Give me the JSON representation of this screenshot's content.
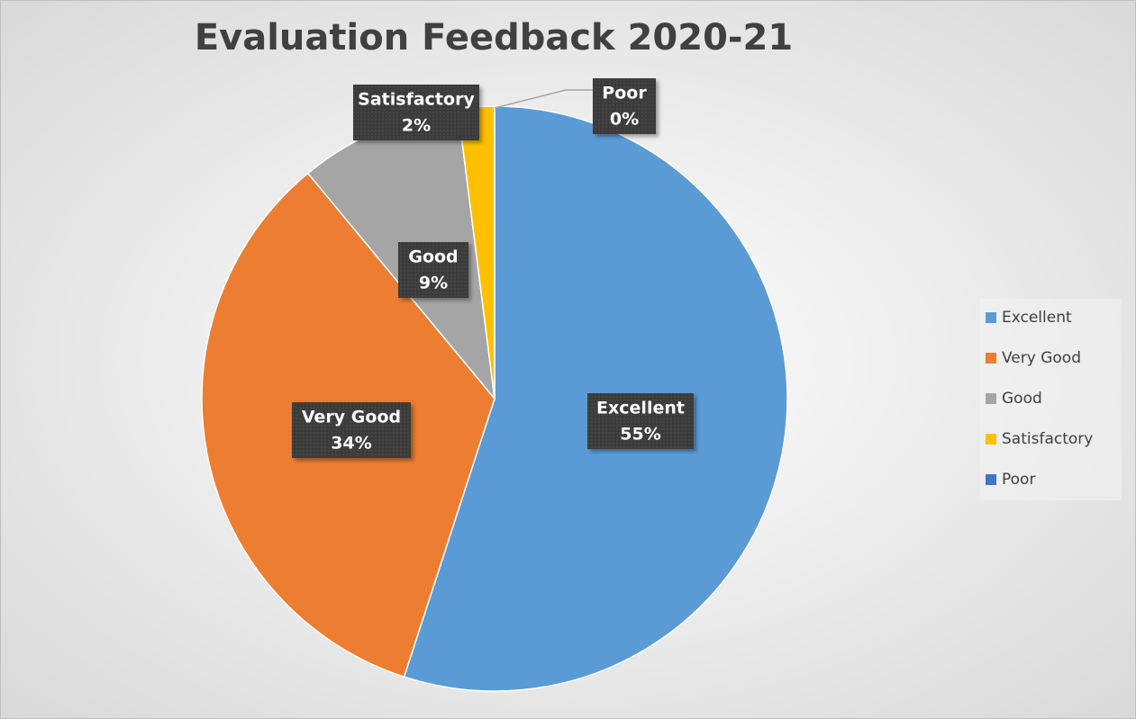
{
  "chart_data": {
    "type": "pie",
    "title": "Evaluation Feedback 2020-21",
    "categories": [
      "Excellent",
      "Very Good",
      "Good",
      "Satisfactory",
      "Poor"
    ],
    "values": [
      55,
      34,
      9,
      2,
      0
    ],
    "value_labels": [
      "55%",
      "34%",
      "9%",
      "2%",
      "0%"
    ],
    "colors": [
      "#5b9bd5",
      "#ed7d31",
      "#a5a5a5",
      "#ffc000",
      "#4472c4"
    ],
    "legend": "right"
  }
}
